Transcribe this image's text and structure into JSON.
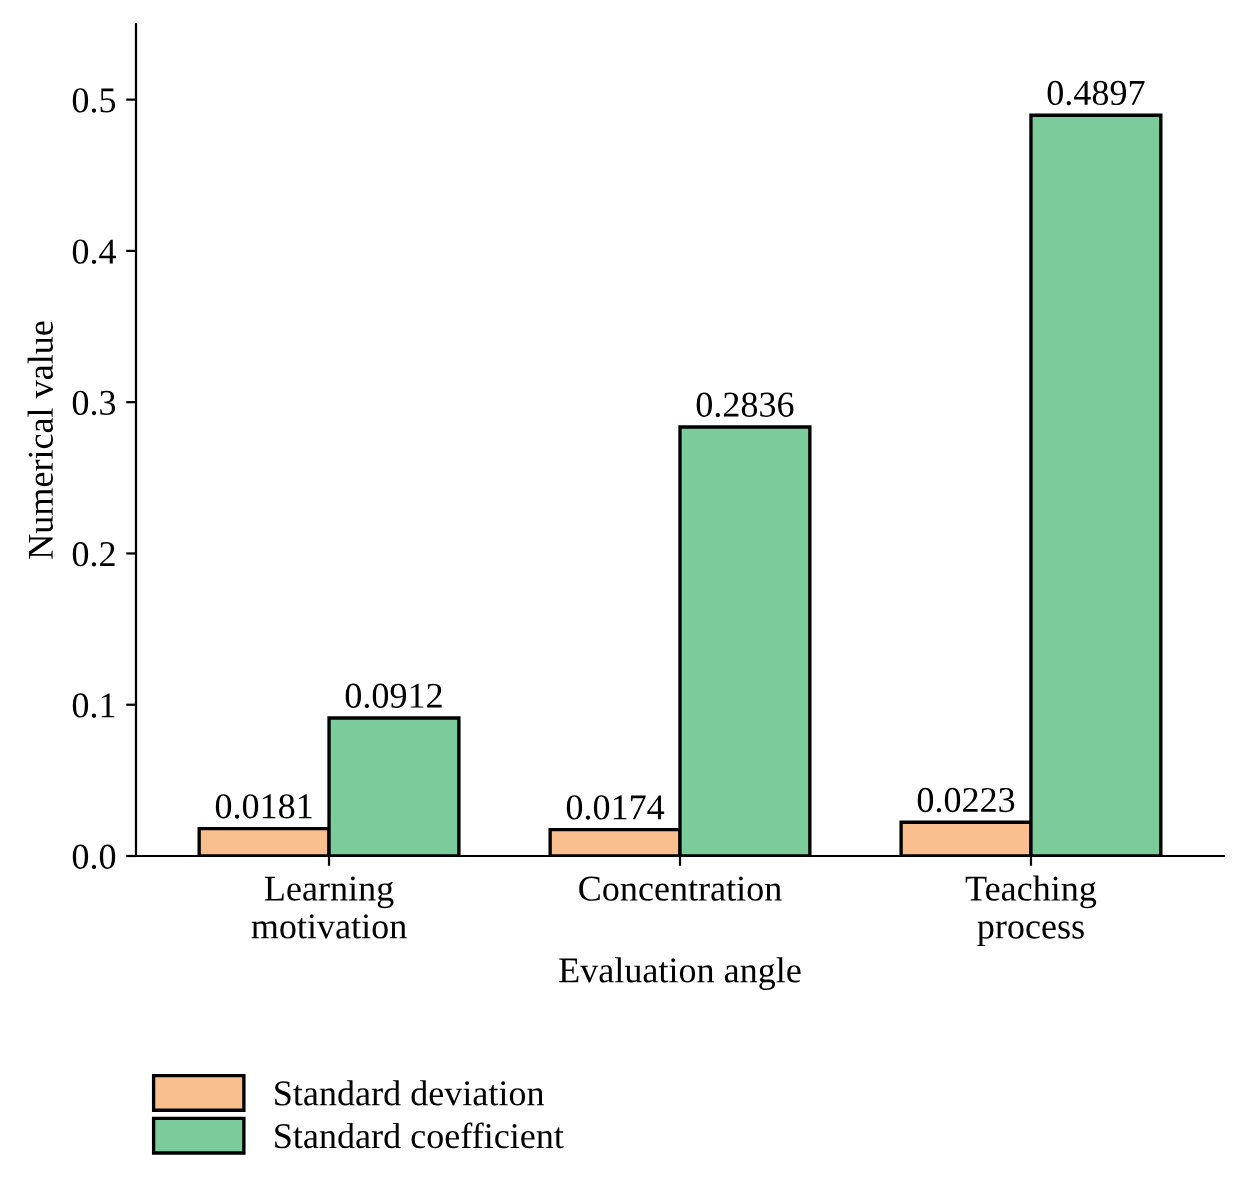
{
  "chart_data": {
    "type": "bar",
    "xlabel": "Evaluation angle",
    "ylabel": "Numerical value",
    "categories": [
      "Learning\nmotivation",
      "Concentration",
      "Teaching\nprocess"
    ],
    "series": [
      {
        "name": "Standard deviation",
        "color": "#f9bf8f",
        "values": [
          0.0181,
          0.0174,
          0.0223
        ]
      },
      {
        "name": "Standard coefficient",
        "color": "#7ccb9b",
        "values": [
          0.0912,
          0.2836,
          0.4897
        ]
      }
    ],
    "ylim": [
      0,
      0.55
    ],
    "yticks": [
      {
        "value": 0,
        "label": "0.0"
      },
      0.1,
      0.2,
      0.3,
      0.4,
      0.5
    ],
    "data_labels": true,
    "legend": "bottom",
    "grid": false
  }
}
